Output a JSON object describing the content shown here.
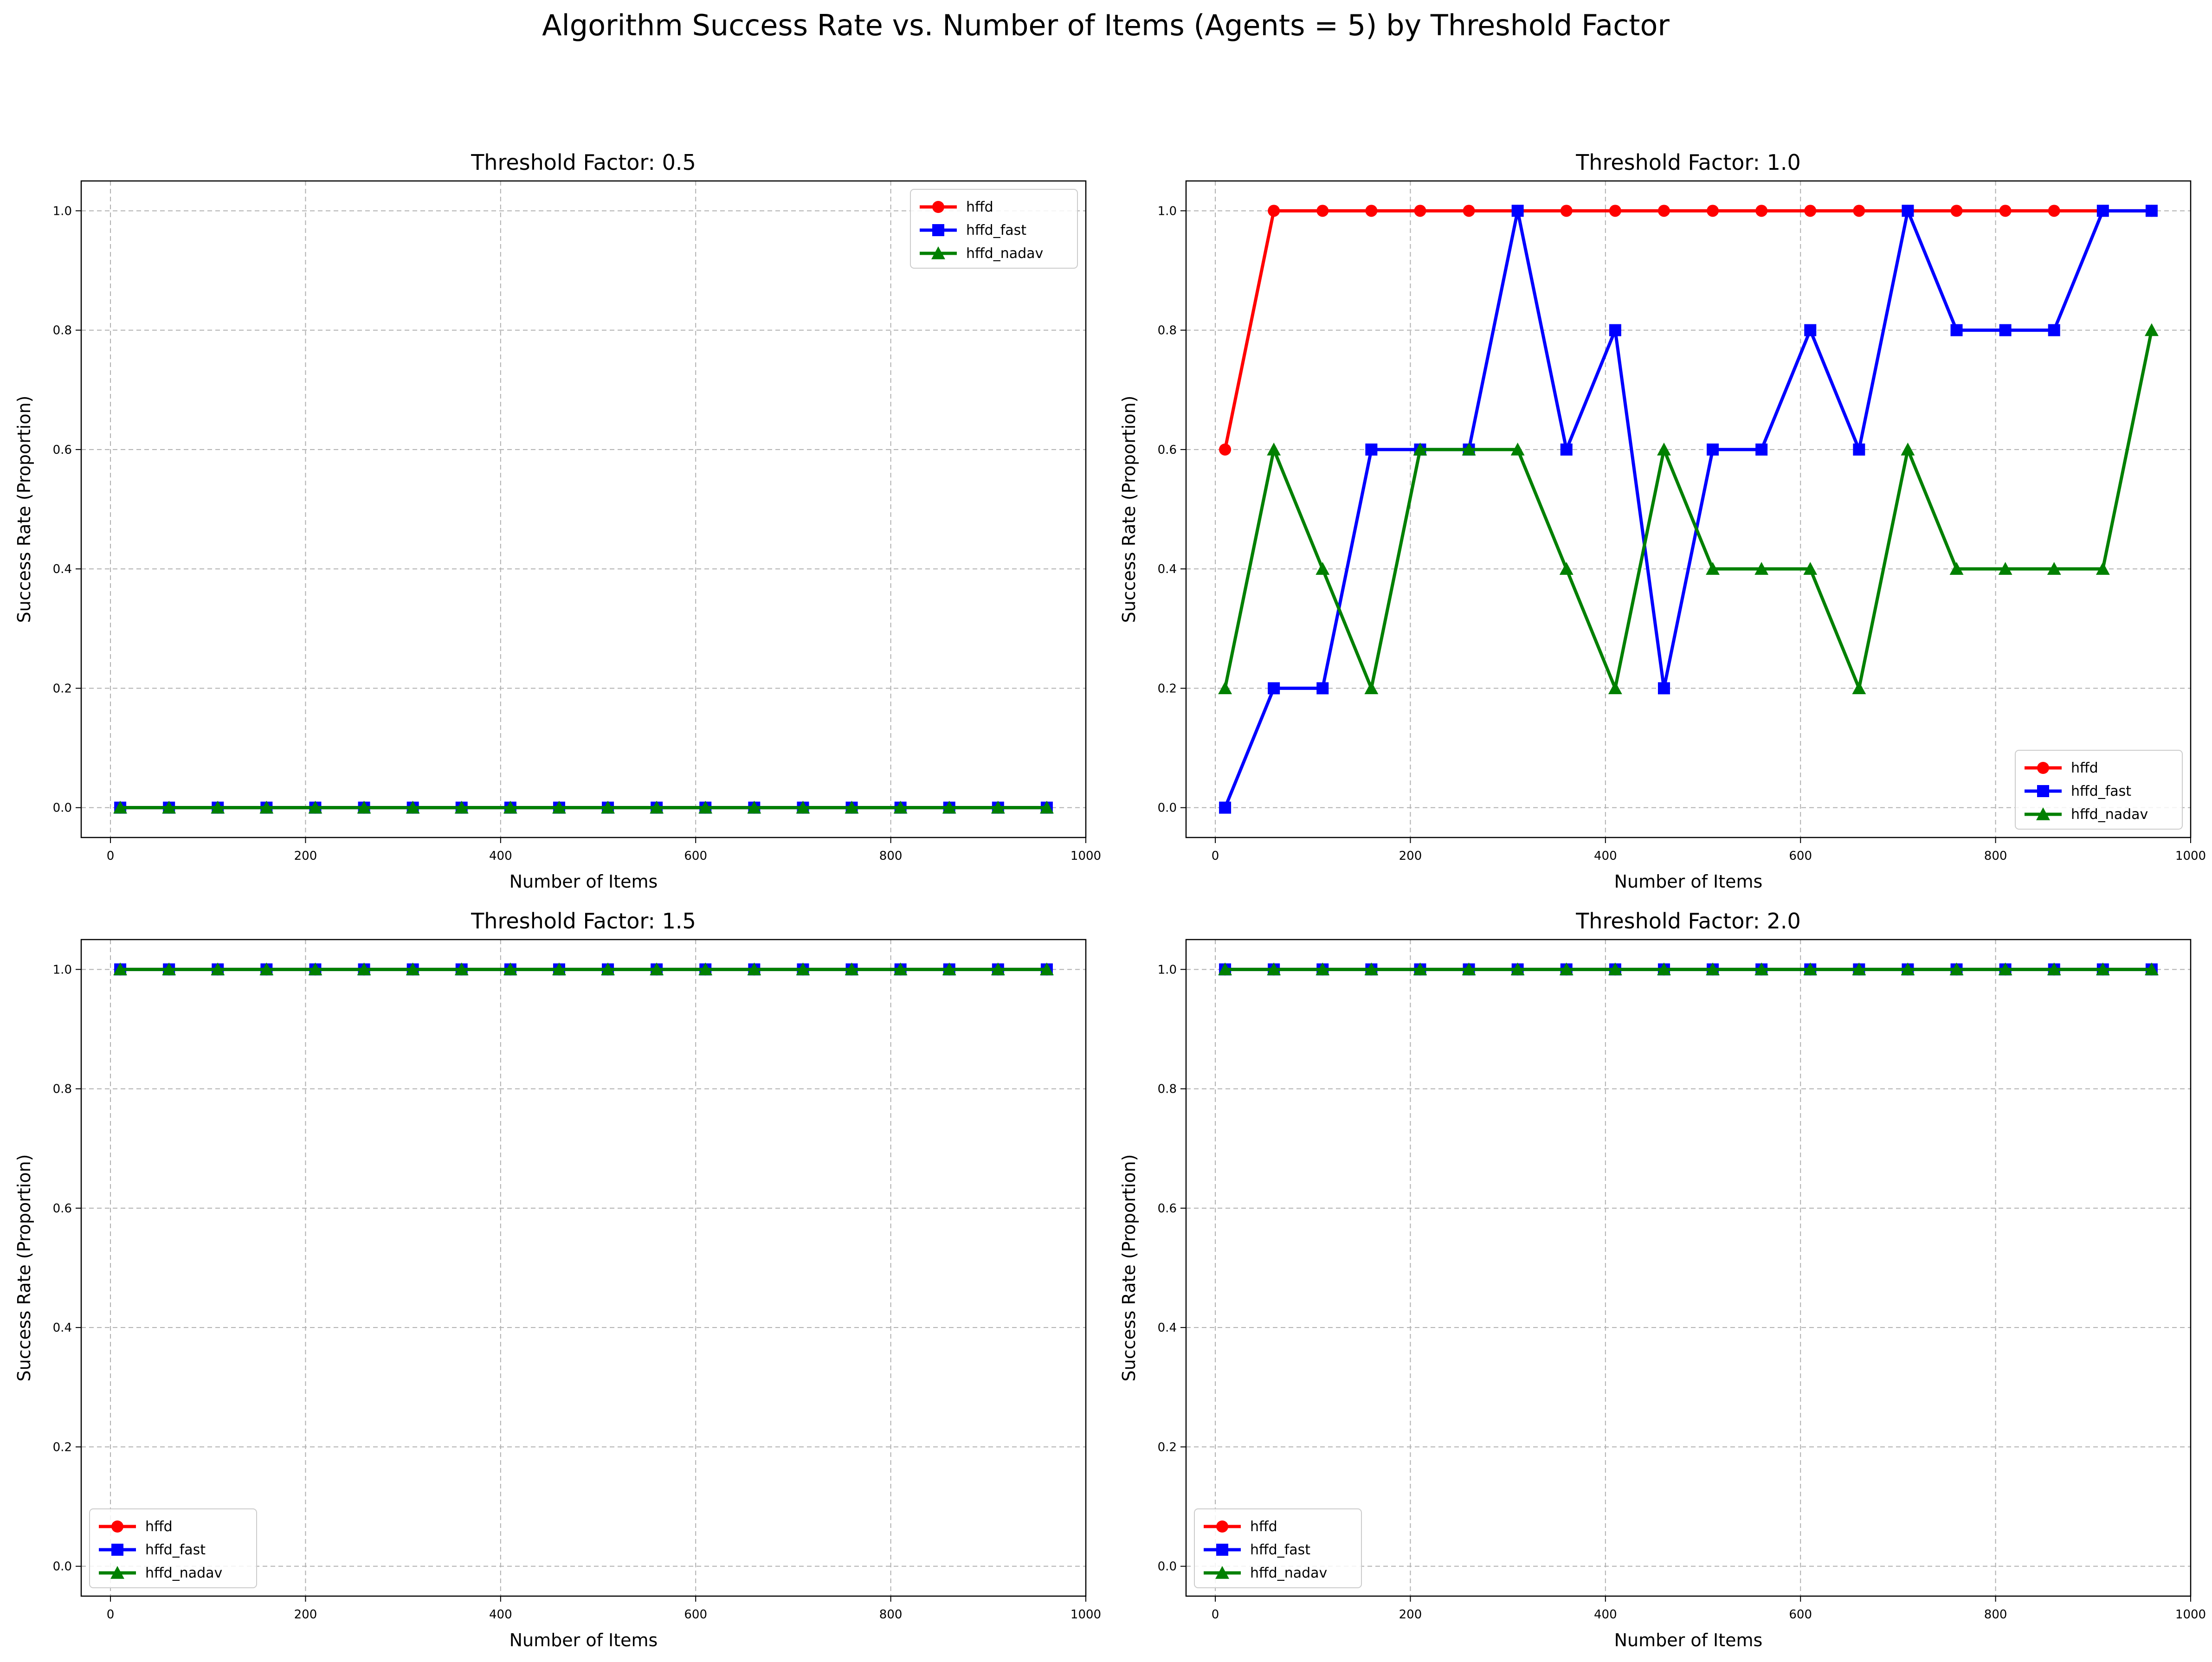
{
  "figure": {
    "suptitle": "Algorithm Success Rate vs. Number of Items (Agents = 5) by Threshold Factor"
  },
  "colors": {
    "hffd": "#ff0000",
    "hffd_fast": "#0000ff",
    "hffd_nadav": "#008000",
    "grid": "#b0b0b0"
  },
  "chart_data": [
    {
      "type": "line",
      "title": "Threshold Factor: 0.5",
      "xlabel": "Number of Items",
      "ylabel": "Success Rate (Proportion)",
      "xlim": [
        -30,
        1000
      ],
      "ylim": [
        -0.05,
        1.05
      ],
      "xticks": [
        0,
        200,
        400,
        600,
        800,
        1000
      ],
      "yticks": [
        "0.0",
        "0.2",
        "0.4",
        "0.6",
        "0.8",
        "1.0"
      ],
      "grid": true,
      "legend_position": "upper right",
      "x": [
        10,
        60,
        110,
        160,
        210,
        260,
        310,
        360,
        410,
        460,
        510,
        560,
        610,
        660,
        710,
        760,
        810,
        860,
        910,
        960
      ],
      "series": [
        {
          "name": "hffd",
          "marker": "circle",
          "values": [
            0,
            0,
            0,
            0,
            0,
            0,
            0,
            0,
            0,
            0,
            0,
            0,
            0,
            0,
            0,
            0,
            0,
            0,
            0,
            0
          ]
        },
        {
          "name": "hffd_fast",
          "marker": "square",
          "values": [
            0,
            0,
            0,
            0,
            0,
            0,
            0,
            0,
            0,
            0,
            0,
            0,
            0,
            0,
            0,
            0,
            0,
            0,
            0,
            0
          ]
        },
        {
          "name": "hffd_nadav",
          "marker": "triangle",
          "values": [
            0,
            0,
            0,
            0,
            0,
            0,
            0,
            0,
            0,
            0,
            0,
            0,
            0,
            0,
            0,
            0,
            0,
            0,
            0,
            0
          ]
        }
      ]
    },
    {
      "type": "line",
      "title": "Threshold Factor: 1.0",
      "xlabel": "Number of Items",
      "ylabel": "Success Rate (Proportion)",
      "xlim": [
        -30,
        1000
      ],
      "ylim": [
        -0.05,
        1.05
      ],
      "xticks": [
        0,
        200,
        400,
        600,
        800,
        1000
      ],
      "yticks": [
        "0.0",
        "0.2",
        "0.4",
        "0.6",
        "0.8",
        "1.0"
      ],
      "grid": true,
      "legend_position": "lower right",
      "x": [
        10,
        60,
        110,
        160,
        210,
        260,
        310,
        360,
        410,
        460,
        510,
        560,
        610,
        660,
        710,
        760,
        810,
        860,
        910,
        960
      ],
      "series": [
        {
          "name": "hffd",
          "marker": "circle",
          "values": [
            0.6,
            1,
            1,
            1,
            1,
            1,
            1,
            1,
            1,
            1,
            1,
            1,
            1,
            1,
            1,
            1,
            1,
            1,
            1,
            1
          ]
        },
        {
          "name": "hffd_fast",
          "marker": "square",
          "values": [
            0,
            0.2,
            0.2,
            0.6,
            0.6,
            0.6,
            1,
            0.6,
            0.8,
            0.2,
            0.6,
            0.6,
            0.8,
            0.6,
            1,
            0.8,
            0.8,
            0.8,
            1,
            1
          ]
        },
        {
          "name": "hffd_nadav",
          "marker": "triangle",
          "values": [
            0.2,
            0.6,
            0.4,
            0.2,
            0.6,
            0.6,
            0.6,
            0.4,
            0.2,
            0.6,
            0.4,
            0.4,
            0.4,
            0.2,
            0.6,
            0.4,
            0.4,
            0.4,
            0.4,
            0.8
          ]
        }
      ]
    },
    {
      "type": "line",
      "title": "Threshold Factor: 1.5",
      "xlabel": "Number of Items",
      "ylabel": "Success Rate (Proportion)",
      "xlim": [
        -30,
        1000
      ],
      "ylim": [
        -0.05,
        1.05
      ],
      "xticks": [
        0,
        200,
        400,
        600,
        800,
        1000
      ],
      "yticks": [
        "0.0",
        "0.2",
        "0.4",
        "0.6",
        "0.8",
        "1.0"
      ],
      "grid": true,
      "legend_position": "lower left",
      "x": [
        10,
        60,
        110,
        160,
        210,
        260,
        310,
        360,
        410,
        460,
        510,
        560,
        610,
        660,
        710,
        760,
        810,
        860,
        910,
        960
      ],
      "series": [
        {
          "name": "hffd",
          "marker": "circle",
          "values": [
            1,
            1,
            1,
            1,
            1,
            1,
            1,
            1,
            1,
            1,
            1,
            1,
            1,
            1,
            1,
            1,
            1,
            1,
            1,
            1
          ]
        },
        {
          "name": "hffd_fast",
          "marker": "square",
          "values": [
            1,
            1,
            1,
            1,
            1,
            1,
            1,
            1,
            1,
            1,
            1,
            1,
            1,
            1,
            1,
            1,
            1,
            1,
            1,
            1
          ]
        },
        {
          "name": "hffd_nadav",
          "marker": "triangle",
          "values": [
            1,
            1,
            1,
            1,
            1,
            1,
            1,
            1,
            1,
            1,
            1,
            1,
            1,
            1,
            1,
            1,
            1,
            1,
            1,
            1
          ]
        }
      ]
    },
    {
      "type": "line",
      "title": "Threshold Factor: 2.0",
      "xlabel": "Number of Items",
      "ylabel": "Success Rate (Proportion)",
      "xlim": [
        -30,
        1000
      ],
      "ylim": [
        -0.05,
        1.05
      ],
      "xticks": [
        0,
        200,
        400,
        600,
        800,
        1000
      ],
      "yticks": [
        "0.0",
        "0.2",
        "0.4",
        "0.6",
        "0.8",
        "1.0"
      ],
      "grid": true,
      "legend_position": "lower left",
      "x": [
        10,
        60,
        110,
        160,
        210,
        260,
        310,
        360,
        410,
        460,
        510,
        560,
        610,
        660,
        710,
        760,
        810,
        860,
        910,
        960
      ],
      "series": [
        {
          "name": "hffd",
          "marker": "circle",
          "values": [
            1,
            1,
            1,
            1,
            1,
            1,
            1,
            1,
            1,
            1,
            1,
            1,
            1,
            1,
            1,
            1,
            1,
            1,
            1,
            1
          ]
        },
        {
          "name": "hffd_fast",
          "marker": "square",
          "values": [
            1,
            1,
            1,
            1,
            1,
            1,
            1,
            1,
            1,
            1,
            1,
            1,
            1,
            1,
            1,
            1,
            1,
            1,
            1,
            1
          ]
        },
        {
          "name": "hffd_nadav",
          "marker": "triangle",
          "values": [
            1,
            1,
            1,
            1,
            1,
            1,
            1,
            1,
            1,
            1,
            1,
            1,
            1,
            1,
            1,
            1,
            1,
            1,
            1,
            1
          ]
        }
      ]
    }
  ]
}
